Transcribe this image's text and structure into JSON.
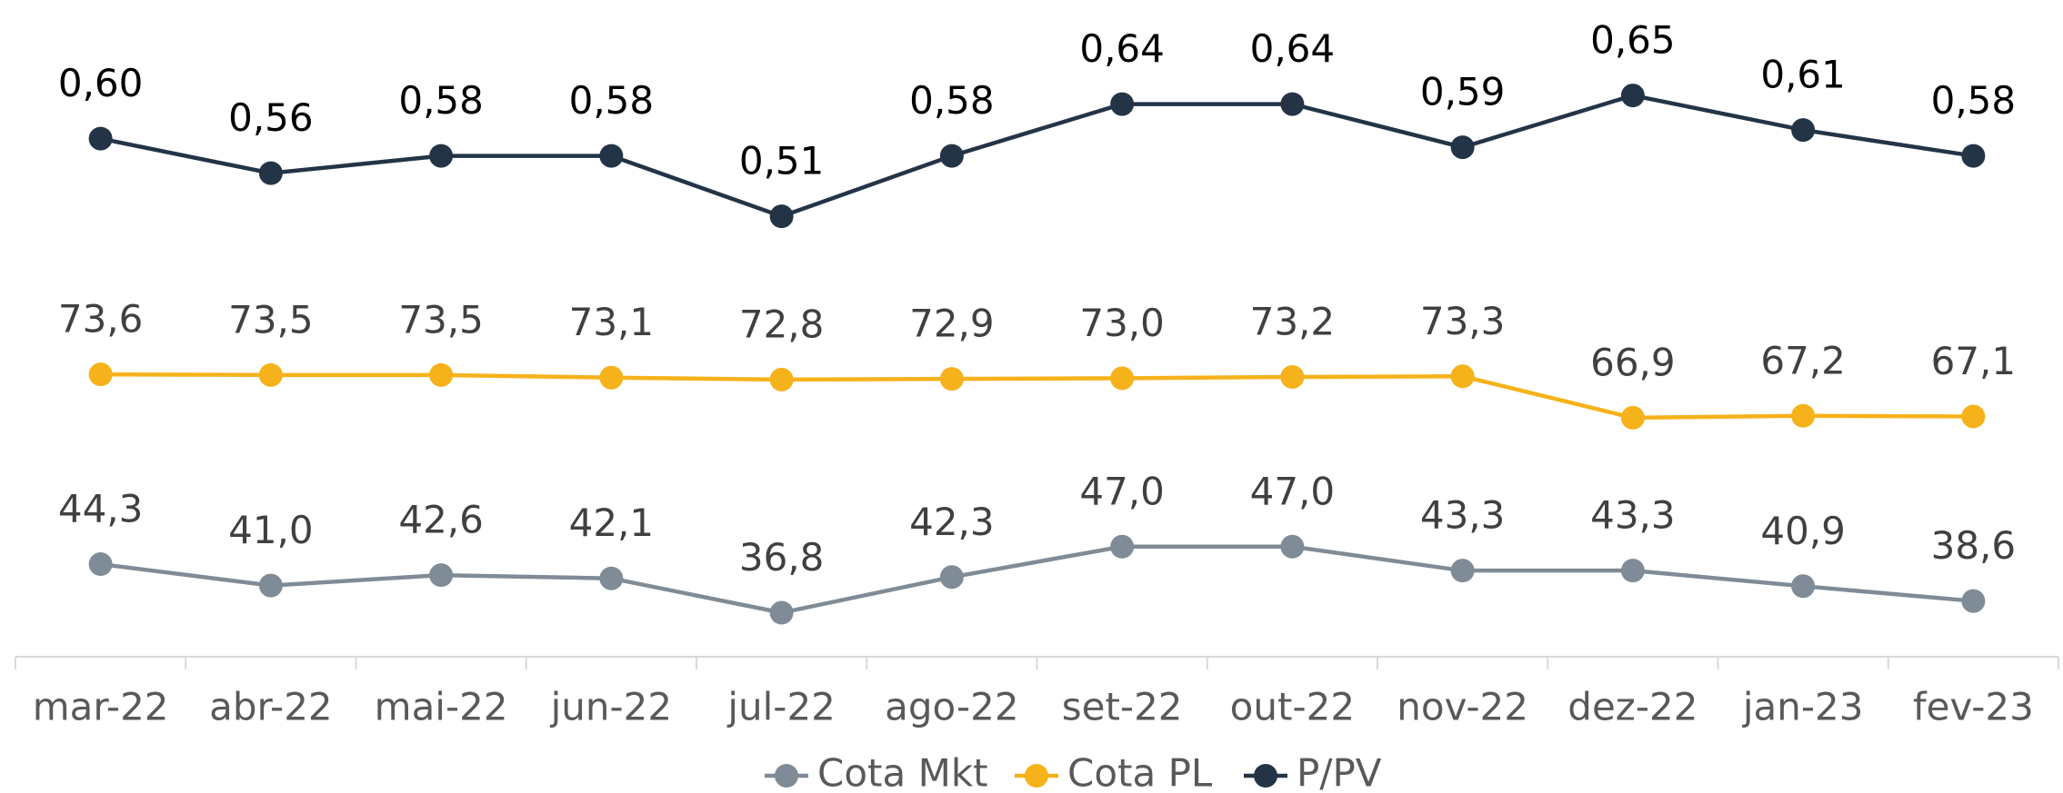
{
  "chart_data": {
    "type": "line",
    "categories": [
      "mar-22",
      "abr-22",
      "mai-22",
      "jun-22",
      "jul-22",
      "ago-22",
      "set-22",
      "out-22",
      "nov-22",
      "dez-22",
      "jan-23",
      "fev-23"
    ],
    "series": [
      {
        "name": "Cota Mkt",
        "color": "#7f8c97",
        "values": [
          44.3,
          41.0,
          42.6,
          42.1,
          36.8,
          42.3,
          47.0,
          47.0,
          43.3,
          43.3,
          40.9,
          38.6
        ],
        "value_labels": [
          "44,3",
          "41,0",
          "42,6",
          "42,1",
          "36,8",
          "42,3",
          "47,0",
          "47,0",
          "43,3",
          "43,3",
          "40,9",
          "38,6"
        ]
      },
      {
        "name": "Cota PL",
        "color": "#f6b21b",
        "values": [
          73.6,
          73.5,
          73.5,
          73.1,
          72.8,
          72.9,
          73.0,
          73.2,
          73.3,
          66.9,
          67.2,
          67.1
        ],
        "value_labels": [
          "73,6",
          "73,5",
          "73,5",
          "73,1",
          "72,8",
          "72,9",
          "73,0",
          "73,2",
          "73,3",
          "66,9",
          "67,2",
          "67,1"
        ]
      },
      {
        "name": "P/PV",
        "color": "#243447",
        "axis": "y2",
        "values": [
          0.6,
          0.56,
          0.58,
          0.58,
          0.51,
          0.58,
          0.64,
          0.64,
          0.59,
          0.65,
          0.61,
          0.58
        ],
        "value_labels": [
          "0,60",
          "0,56",
          "0,58",
          "0,58",
          "0,51",
          "0,58",
          "0,64",
          "0,64",
          "0,59",
          "0,65",
          "0,61",
          "0,58"
        ]
      }
    ],
    "ylim": [
      30,
      130
    ],
    "y2lim": [
      0,
      0.75
    ],
    "grid": false,
    "legend": "bottom"
  }
}
